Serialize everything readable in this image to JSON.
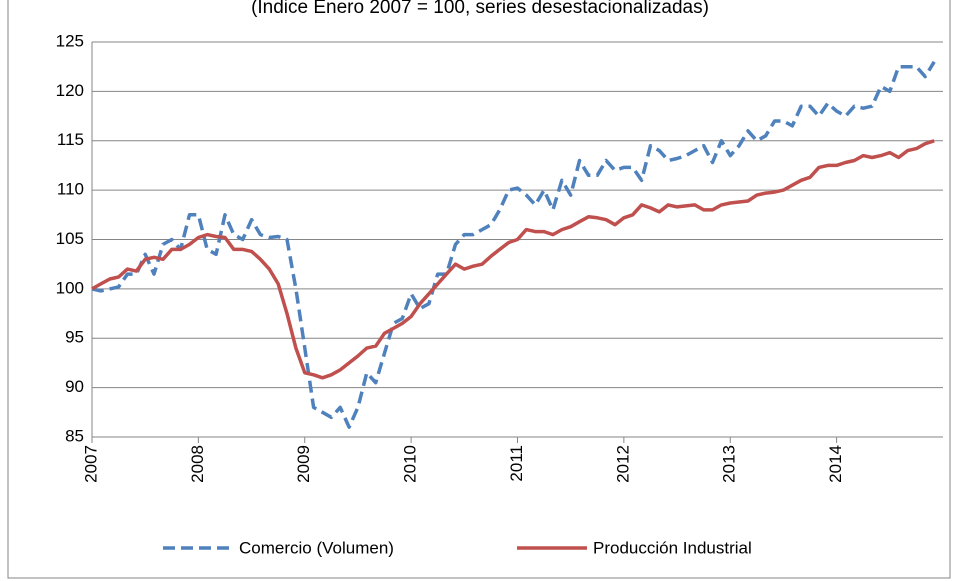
{
  "chart_data": {
    "type": "line",
    "title": "(Índice Enero 2007 = 100, series desestacionalizadas)",
    "x": [
      2007,
      2007.083,
      2007.167,
      2007.25,
      2007.333,
      2007.417,
      2007.5,
      2007.583,
      2007.667,
      2007.75,
      2007.833,
      2007.917,
      2008,
      2008.083,
      2008.167,
      2008.25,
      2008.333,
      2008.417,
      2008.5,
      2008.583,
      2008.667,
      2008.75,
      2008.833,
      2008.917,
      2009,
      2009.083,
      2009.167,
      2009.25,
      2009.333,
      2009.417,
      2009.5,
      2009.583,
      2009.667,
      2009.75,
      2009.833,
      2009.917,
      2010,
      2010.083,
      2010.167,
      2010.25,
      2010.333,
      2010.417,
      2010.5,
      2010.583,
      2010.667,
      2010.75,
      2010.833,
      2010.917,
      2011,
      2011.083,
      2011.167,
      2011.25,
      2011.333,
      2011.417,
      2011.5,
      2011.583,
      2011.667,
      2011.75,
      2011.833,
      2011.917,
      2012,
      2012.083,
      2012.167,
      2012.25,
      2012.333,
      2012.417,
      2012.5,
      2012.583,
      2012.667,
      2012.75,
      2012.833,
      2012.917,
      2013,
      2013.083,
      2013.167,
      2013.25,
      2013.333,
      2013.417,
      2013.5,
      2013.583,
      2013.667,
      2013.75,
      2013.833,
      2013.917,
      2014,
      2014.083,
      2014.167,
      2014.25,
      2014.333,
      2014.417,
      2014.5,
      2014.583,
      2014.667,
      2014.75,
      2014.833,
      2014.917
    ],
    "series": [
      {
        "name": "Comercio (Volumen)",
        "color": "#4f81bd",
        "dash": true,
        "values": [
          100,
          99.8,
          100,
          100.2,
          101.5,
          101.5,
          103.5,
          101.5,
          104.5,
          105,
          104,
          107.5,
          107.5,
          104,
          103.5,
          107.5,
          105.5,
          105,
          107,
          105.5,
          105.2,
          105.3,
          105,
          100,
          94,
          88,
          87.5,
          87,
          88,
          86,
          88,
          91.5,
          90.5,
          93.5,
          96.5,
          97,
          99.5,
          98,
          98.5,
          101.5,
          101.5,
          104.5,
          105.5,
          105.5,
          106,
          106.5,
          108,
          110,
          110.2,
          109.5,
          108.5,
          110,
          108,
          111,
          109.5,
          113,
          111.5,
          111.5,
          113,
          112,
          112.3,
          112.3,
          111,
          114.5,
          114,
          113,
          113.2,
          113.5,
          114,
          114.5,
          112.8,
          115,
          113.5,
          114.5,
          116,
          115,
          115.5,
          117,
          117,
          116.5,
          118.5,
          118.5,
          117.5,
          118.8,
          118,
          117.5,
          118.5,
          118.3,
          118.5,
          120.5,
          120,
          122.5,
          122.5,
          122.5,
          121.5,
          123
        ]
      },
      {
        "name": "Producción Industrial",
        "color": "#c0504d",
        "dash": false,
        "values": [
          100,
          100.5,
          101,
          101.2,
          102,
          101.8,
          103,
          103.2,
          103,
          104,
          104,
          104.5,
          105.2,
          105.5,
          105.3,
          105.2,
          104,
          104,
          103.8,
          103,
          102,
          100.5,
          97.5,
          94,
          91.5,
          91.3,
          91,
          91.3,
          91.8,
          92.5,
          93.2,
          94,
          94.2,
          95.5,
          96,
          96.5,
          97.2,
          98.5,
          99.5,
          100.5,
          101.5,
          102.5,
          102,
          102.3,
          102.5,
          103.3,
          104,
          104.7,
          105,
          106,
          105.8,
          105.8,
          105.5,
          106,
          106.3,
          106.8,
          107.3,
          107.2,
          107,
          106.5,
          107.2,
          107.5,
          108.5,
          108.2,
          107.8,
          108.5,
          108.3,
          108.4,
          108.5,
          108,
          108,
          108.5,
          108.7,
          108.8,
          108.9,
          109.5,
          109.7,
          109.8,
          110,
          110.5,
          111,
          111.3,
          112.3,
          112.5,
          112.5,
          112.8,
          113,
          113.5,
          113.3,
          113.5,
          113.8,
          113.3,
          114,
          114.2,
          114.7,
          115
        ]
      }
    ],
    "xlim": [
      2007,
      2015
    ],
    "xticks": [
      2007,
      2008,
      2009,
      2010,
      2011,
      2012,
      2013,
      2014
    ],
    "ylim": [
      85,
      125
    ],
    "yticks": [
      85,
      90,
      95,
      100,
      105,
      110,
      115,
      120,
      125
    ],
    "grid": true,
    "legend": "bottom"
  }
}
